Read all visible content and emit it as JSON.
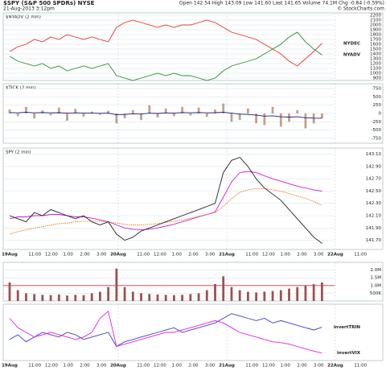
{
  "header": {
    "title": "$SPY (S&P 500 SPDRs) NYSE",
    "date": "21-Aug-2013 3:12pm",
    "quote": "Open 142.54 High 143.09 Low 141.60 Last 141.65 Volume 74.1M Chg -0.84 (-0.59%)",
    "credit": "© StockCharts.com"
  },
  "time_axis": {
    "labels": [
      "19Aug",
      "11:00",
      "12:00",
      "1:00",
      "2:00",
      "3:00",
      "20Aug",
      "11:00",
      "12:00",
      "1:00",
      "2:00",
      "3:00",
      "21Aug",
      "11:00",
      "12:00",
      "1:00",
      "2:00",
      "3:00",
      "22Aug",
      "11:00"
    ]
  },
  "chart_data": [
    {
      "type": "line",
      "label": "$NYADV (2 min)",
      "ylim": [
        850,
        2250
      ],
      "yticks": [
        900,
        1000,
        1100,
        1200,
        1300,
        1400,
        1500,
        1600,
        1700,
        1800,
        1900,
        2000,
        2100,
        2200
      ],
      "series": [
        {
          "name": "NYDEC",
          "color": "#e8302a",
          "values": [
            1450,
            1550,
            1600,
            1700,
            1650,
            1750,
            1700,
            1800,
            1750,
            1700,
            1750,
            1700,
            1650,
            1950,
            2050,
            2100,
            2050,
            2000,
            1950,
            2000,
            1950,
            2000,
            2000,
            2050,
            2100,
            2050,
            1950,
            1850,
            1800,
            1750,
            1700,
            1600,
            1500,
            1400,
            1250,
            1150,
            1300,
            1450,
            1620
          ]
        },
        {
          "name": "NYADV",
          "color": "#2a8a2a",
          "values": [
            1350,
            1250,
            1200,
            1150,
            1200,
            1100,
            1150,
            1050,
            1100,
            1150,
            1100,
            1150,
            1200,
            950,
            900,
            850,
            900,
            950,
            1000,
            950,
            1000,
            950,
            950,
            900,
            850,
            900,
            1050,
            1150,
            1200,
            1250,
            1300,
            1400,
            1500,
            1600,
            1750,
            1850,
            1650,
            1500,
            1380
          ]
        }
      ]
    },
    {
      "type": "bar",
      "label": "$TICK (2 min)",
      "ylim": [
        -900,
        900
      ],
      "yticks": [
        -750,
        -500,
        -250,
        0,
        250,
        500,
        750
      ],
      "series": [
        {
          "type": "bar",
          "color": "#c4a08a",
          "values": [
            120,
            -80,
            200,
            -150,
            90,
            -60,
            180,
            -220,
            140,
            -100,
            60,
            -40,
            80,
            -300,
            -150,
            100,
            -200,
            250,
            -120,
            150,
            -80,
            200,
            -60,
            180,
            -100,
            120,
            300,
            -250,
            -200,
            150,
            -300,
            -350,
            200,
            -400,
            -250,
            100,
            -450,
            -300,
            -144
          ]
        },
        {
          "type": "line",
          "color": "#1c1c80",
          "values": [
            30,
            20,
            40,
            20,
            30,
            20,
            25,
            10,
            20,
            15,
            10,
            5,
            10,
            -40,
            -30,
            -10,
            -20,
            10,
            0,
            20,
            10,
            30,
            20,
            30,
            20,
            25,
            40,
            10,
            -20,
            -30,
            -50,
            -80,
            -70,
            -100,
            -110,
            -100,
            -130,
            -140,
            -144
          ]
        }
      ]
    },
    {
      "type": "line",
      "label": "SPY (2 min)",
      "ylim": [
        141.55,
        143.2
      ],
      "time_labels": true,
      "yticks": [
        {
          "value": 141.7,
          "label": "141.70"
        },
        {
          "value": 141.9,
          "label": "141.90"
        },
        {
          "value": 142.1,
          "label": "142.10"
        },
        {
          "value": 142.3,
          "label": "142.30"
        },
        {
          "value": 142.5,
          "label": "142.50"
        },
        {
          "value": 142.7,
          "label": "142.70"
        },
        {
          "value": 142.9,
          "label": "142.90"
        },
        {
          "value": 143.1,
          "label": "143.10"
        }
      ],
      "series": [
        {
          "color": "#d21cd2",
          "values": [
            142.05,
            142.08,
            142.08,
            142.1,
            142.1,
            142.12,
            142.12,
            142.1,
            142.08,
            142.08,
            142.06,
            142.03,
            142.0,
            141.95,
            141.9,
            141.88,
            141.87,
            141.88,
            141.9,
            141.93,
            141.96,
            142.0,
            142.04,
            142.08,
            142.12,
            142.16,
            142.4,
            142.65,
            142.8,
            142.82,
            142.8,
            142.75,
            142.7,
            142.66,
            142.62,
            142.58,
            142.55,
            142.52,
            142.5
          ]
        },
        {
          "color": "#f07818",
          "dash": true,
          "values": [
            141.8,
            141.84,
            141.87,
            141.9,
            141.92,
            141.95,
            141.97,
            141.98,
            142.0,
            142.01,
            142.01,
            142.01,
            142.0,
            141.98,
            141.96,
            141.95,
            141.95,
            141.96,
            141.97,
            141.99,
            142.01,
            142.03,
            142.06,
            142.09,
            142.12,
            142.15,
            142.25,
            142.38,
            142.48,
            142.52,
            142.54,
            142.54,
            142.52,
            142.5,
            142.46,
            142.42,
            142.38,
            142.33,
            142.27
          ]
        },
        {
          "color": "#222222",
          "values": [
            142.1,
            142.05,
            142.0,
            142.15,
            142.1,
            142.2,
            142.15,
            142.1,
            142.05,
            142.1,
            142.0,
            141.95,
            142.0,
            141.8,
            141.7,
            141.75,
            141.85,
            141.9,
            141.95,
            142.0,
            142.05,
            142.1,
            142.15,
            142.2,
            142.25,
            142.3,
            142.8,
            143.0,
            143.05,
            142.9,
            142.7,
            142.55,
            142.45,
            142.35,
            142.2,
            142.05,
            141.9,
            141.75,
            141.65
          ]
        }
      ]
    },
    {
      "type": "bar",
      "ylim": [
        0,
        2500000
      ],
      "reference_line": 1000000,
      "yticks": [
        {
          "value": 500000,
          "label": "500K"
        },
        {
          "value": 1000000,
          "label": "1.0M"
        },
        {
          "value": 1500000,
          "label": "1.5M"
        },
        {
          "value": 2000000,
          "label": "2.0M"
        }
      ],
      "series": [
        {
          "type": "bar",
          "color": "#a05050",
          "values": [
            1200000,
            700000,
            500000,
            450000,
            400000,
            380000,
            420000,
            350000,
            400000,
            380000,
            500000,
            600000,
            900000,
            2100000,
            900000,
            600000,
            500000,
            450000,
            420000,
            400000,
            380000,
            400000,
            450000,
            500000,
            700000,
            1100000,
            1600000,
            900000,
            700000,
            600000,
            550000,
            600000,
            650000,
            700000,
            800000,
            900000,
            1000000,
            1100000,
            1200000
          ]
        }
      ]
    },
    {
      "type": "line",
      "ylim": [
        0.4,
        1.6
      ],
      "time_labels": true,
      "legend_inside": true,
      "series": [
        {
          "name": "invertTRIN",
          "color": "#3a3ad8",
          "values": [
            0.85,
            0.95,
            0.8,
            0.9,
            1.0,
            0.95,
            0.9,
            1.0,
            0.95,
            0.85,
            0.9,
            0.95,
            1.0,
            0.7,
            0.8,
            0.85,
            0.9,
            0.95,
            1.0,
            1.05,
            1.1,
            1.0,
            1.05,
            1.1,
            1.15,
            1.2,
            1.3,
            1.4,
            1.35,
            1.3,
            1.25,
            1.3,
            1.2,
            1.25,
            1.2,
            1.15,
            1.1,
            1.05,
            1.11
          ]
        },
        {
          "name": "invertVIX",
          "color": "#e020e0",
          "values": [
            1.3,
            1.1,
            1.0,
            0.9,
            0.95,
            1.0,
            0.95,
            0.9,
            0.85,
            0.9,
            1.0,
            1.3,
            1.45,
            0.7,
            0.75,
            0.8,
            0.85,
            0.9,
            0.95,
            1.0,
            1.0,
            1.05,
            1.1,
            1.15,
            1.2,
            1.25,
            1.2,
            1.1,
            1.0,
            0.95,
            0.9,
            0.85,
            0.8,
            0.78,
            0.75,
            0.7,
            0.65,
            0.6,
            0.56
          ]
        }
      ]
    }
  ]
}
